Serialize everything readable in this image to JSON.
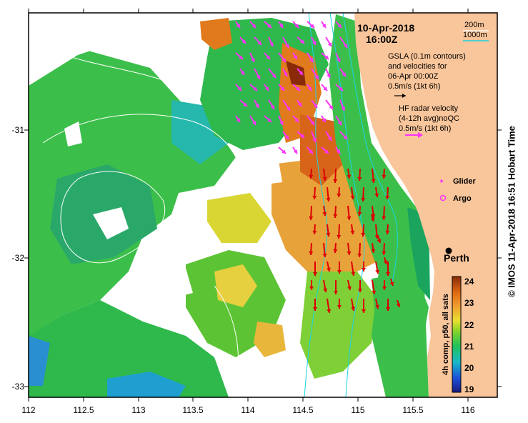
{
  "map": {
    "title_date": "10-Apr-2018",
    "title_time": "16:00Z",
    "contour_legend": {
      "shallow": "200m",
      "deep": "1000m",
      "shallow_color": "#ffffff",
      "deep_color": "#19d4e6"
    },
    "gsla_text": [
      "GSLA (0.1m contours)",
      "and velocities for",
      "06-Apr 00:00Z",
      "0.5m/s (1kt 6h)"
    ],
    "hf_text": [
      "HF radar velocity",
      "(4-12h avg)noQC",
      "0.5m/s (1kt 6h)"
    ],
    "glider_label": "Glider",
    "argo_label": "Argo",
    "city_label": "Perth",
    "x_ticks": [
      "112",
      "112.5",
      "113",
      "113.5",
      "114",
      "114.5",
      "115",
      "115.5",
      "116"
    ],
    "y_ticks": [
      "-31",
      "-32",
      "-33"
    ],
    "colorbar_label": "4h comp, p50, all sats",
    "colorbar_ticks": [
      "24",
      "23",
      "22",
      "21",
      "20",
      "19"
    ],
    "credit": "© IMOS 11-Apr-2018 16:51 Hobart Time",
    "colors": {
      "land": "#f9c59a",
      "hf_arrow": "#ff33ff",
      "vector": "#dd0000",
      "frame": "#000000"
    }
  }
}
